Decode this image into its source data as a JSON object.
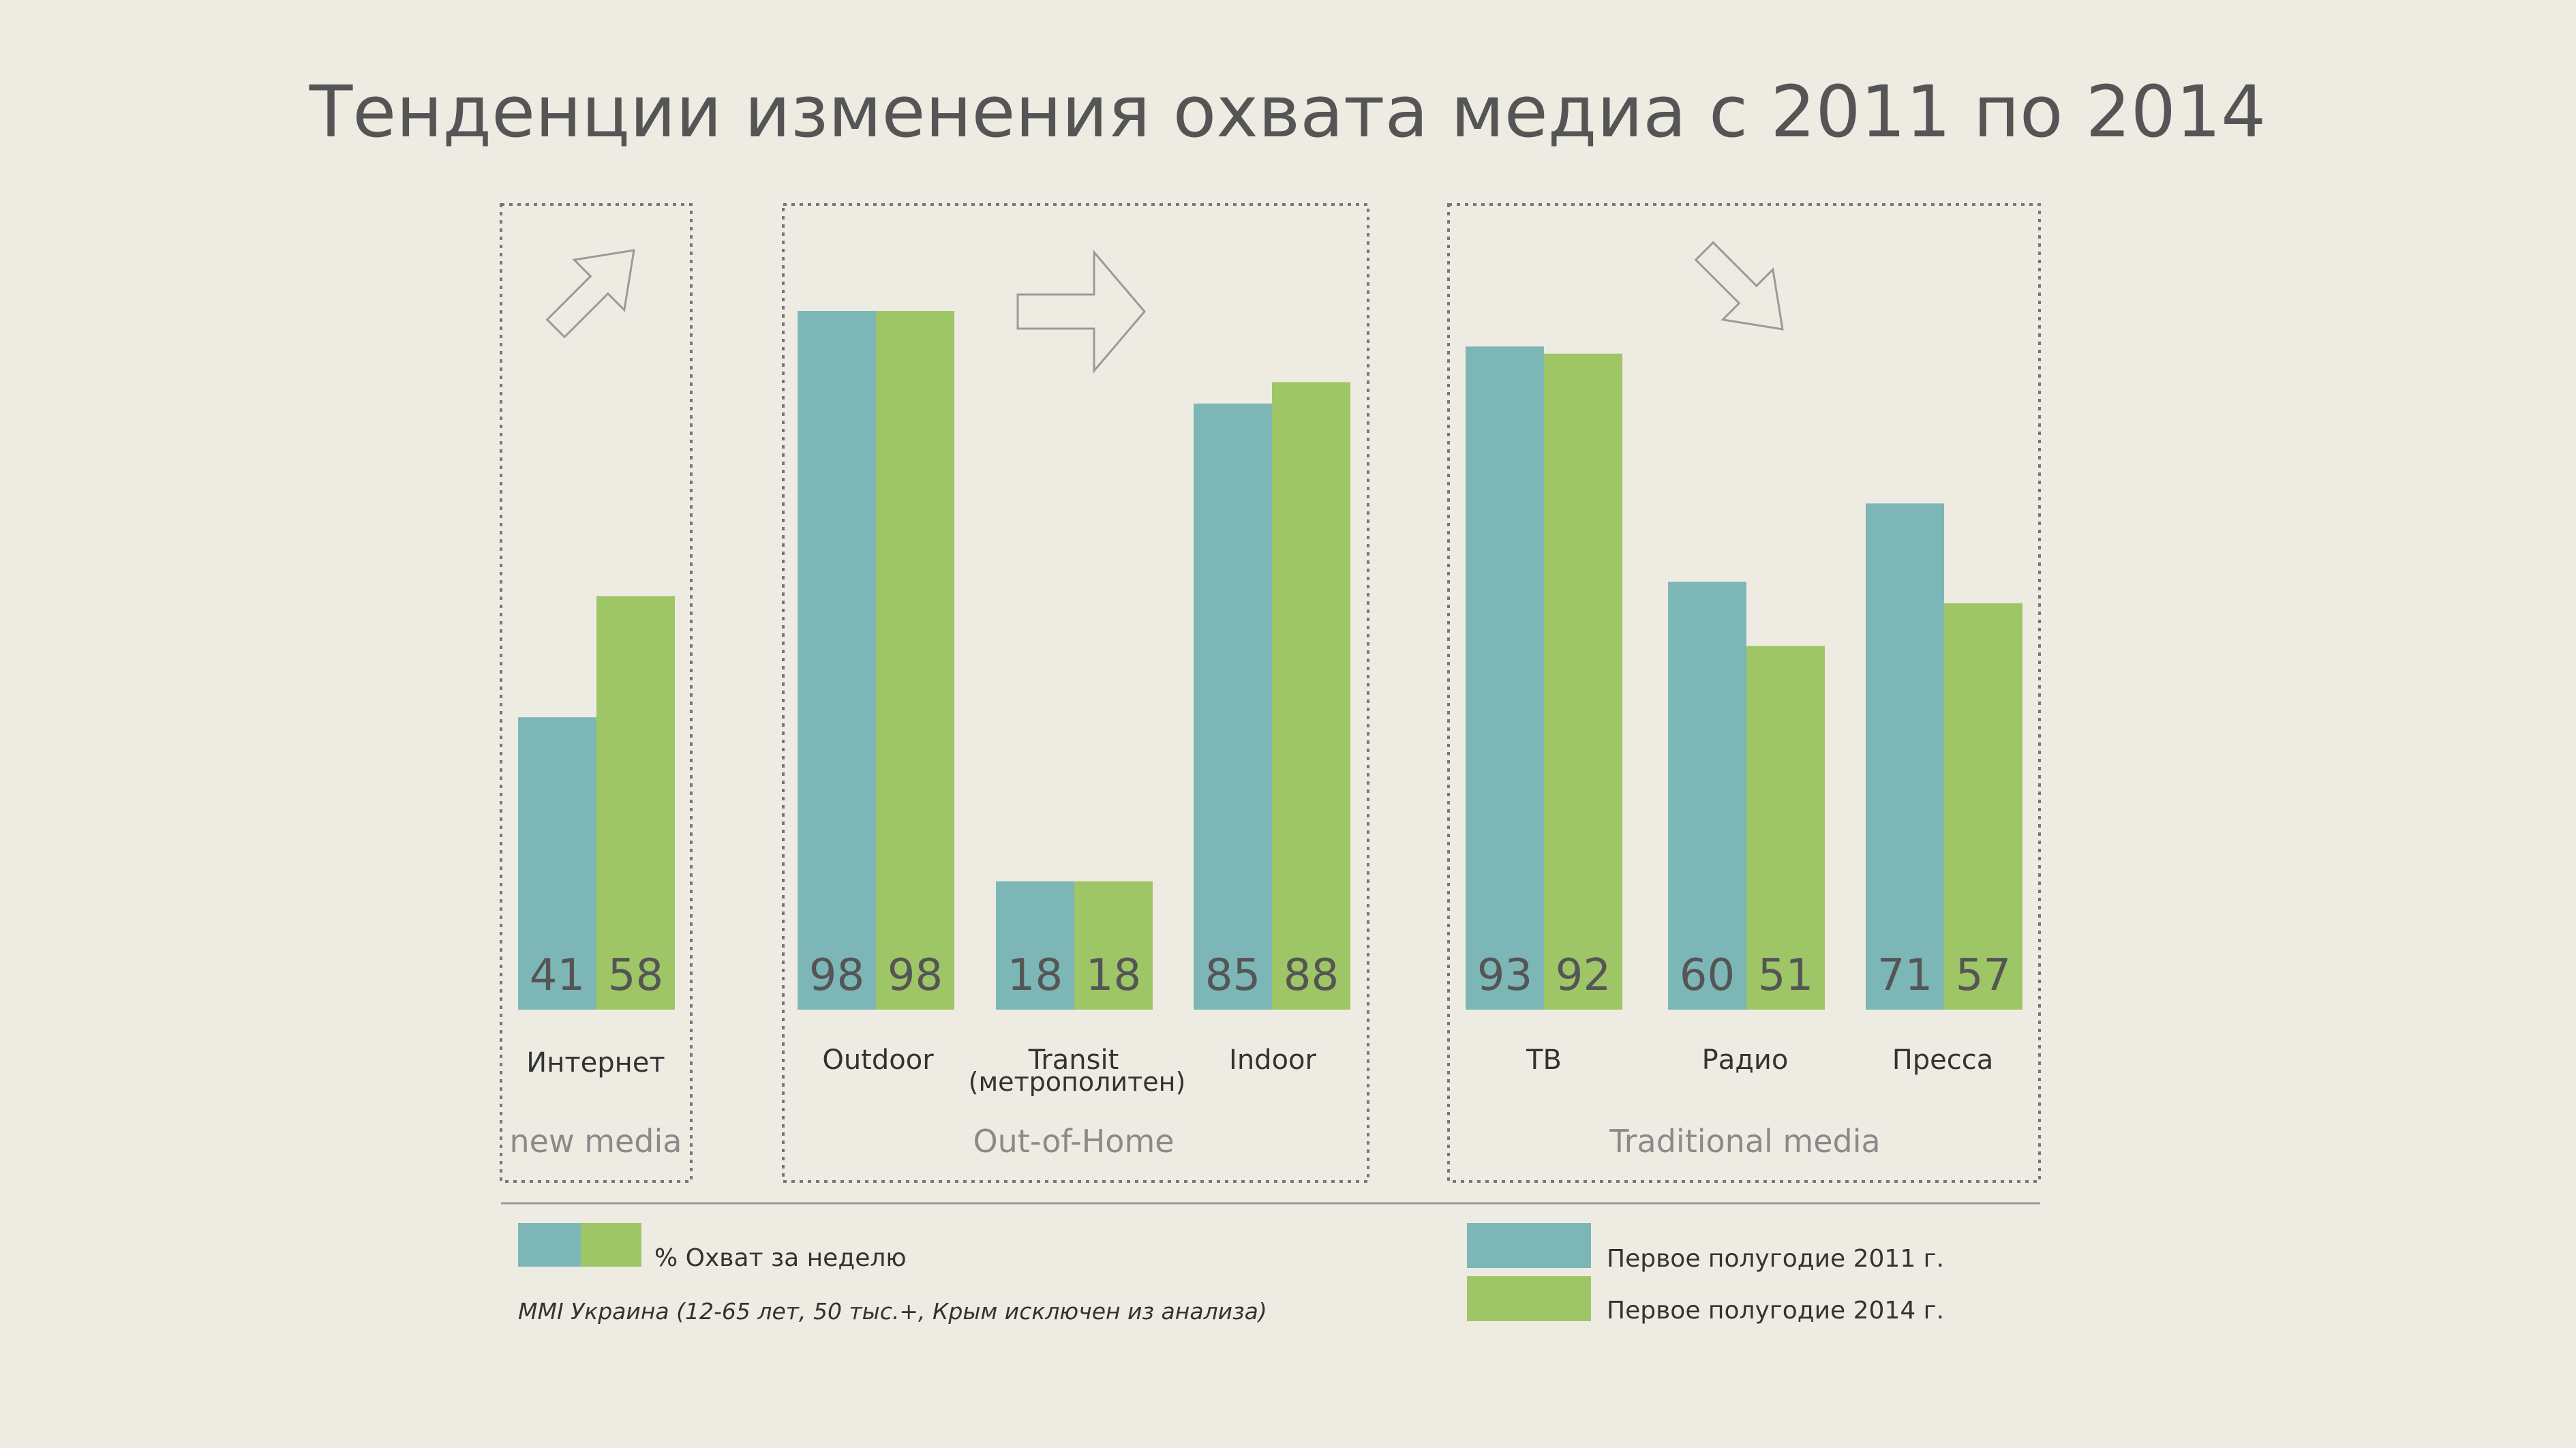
{
  "title": "Тенденции изменения охвата медиа с 2011 по 2014",
  "colors": {
    "background": "#eeece2",
    "series_2011": "#7db6b6",
    "series_2014": "#9fc666",
    "text_dark": "#555555",
    "text_group": "#8a8a8a",
    "frame": "#777777"
  },
  "chart_data": {
    "type": "bar",
    "title": "Тенденции изменения охвата медиа с 2011 по 2014",
    "ylabel": "% Охват за неделю",
    "ylim": [
      0,
      100
    ],
    "grid": false,
    "series": [
      {
        "name": "Первое полугодие 2011 г.",
        "values": [
          41,
          98,
          18,
          85,
          93,
          60,
          71
        ]
      },
      {
        "name": "Первое полугодие 2014 г.",
        "values": [
          58,
          98,
          18,
          88,
          92,
          51,
          57
        ]
      }
    ],
    "categories": [
      {
        "label": "Интернет",
        "group": "new media"
      },
      {
        "label": "Outdoor",
        "group": "Out-of-Home"
      },
      {
        "label": "Transit",
        "label_line2": "(метрополитен)",
        "group": "Out-of-Home"
      },
      {
        "label": "Indoor",
        "group": "Out-of-Home"
      },
      {
        "label": "ТВ",
        "group": "Traditional media"
      },
      {
        "label": "Радио",
        "group": "Traditional media"
      },
      {
        "label": "Пресса",
        "group": "Traditional media"
      }
    ],
    "groups": [
      {
        "name": "new media",
        "trend": "up",
        "trend_icon": "arrow-up-right-icon"
      },
      {
        "name": "Out-of-Home",
        "trend": "flat",
        "trend_icon": "arrow-right-icon"
      },
      {
        "name": "Traditional media",
        "trend": "down",
        "trend_icon": "arrow-down-right-icon"
      }
    ]
  },
  "legend": {
    "measure_label": "% Охват за неделю",
    "source": "MMI Украина (12-65 лет, 50 тыс.+, Крым исключен из анализа)",
    "series_2011_label": "Первое полугодие 2011 г.",
    "series_2014_label": "Первое полугодие 2014 г."
  }
}
